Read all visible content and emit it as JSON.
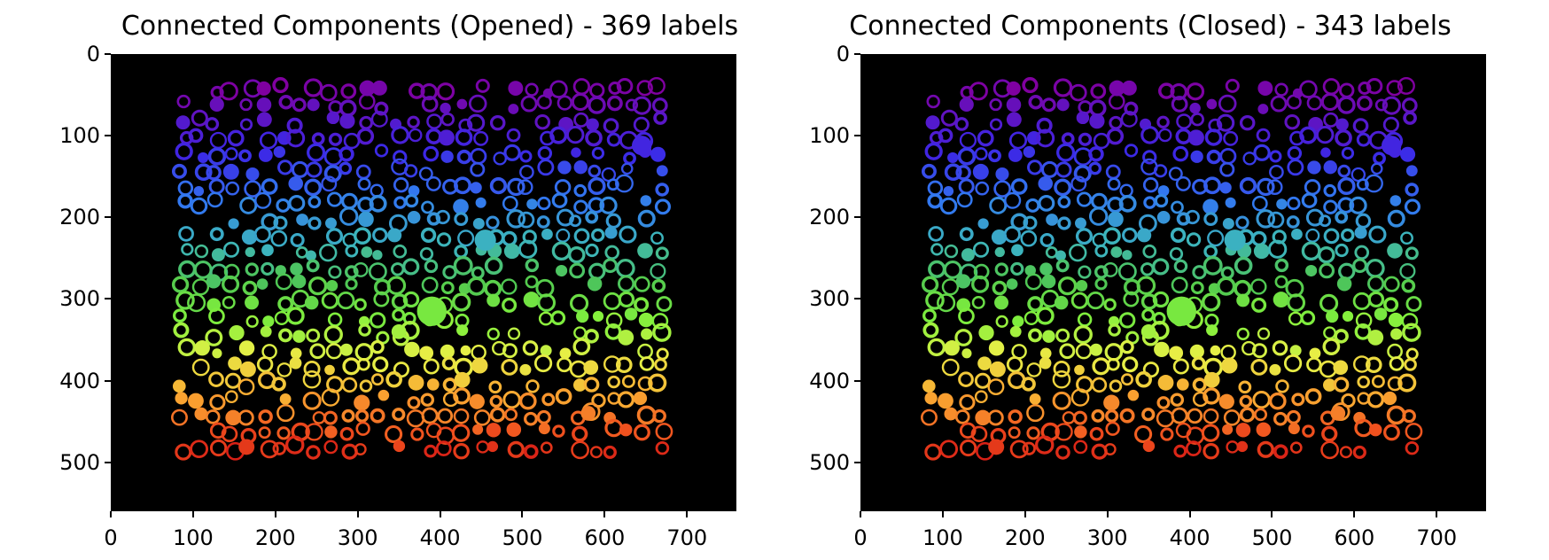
{
  "figure": {
    "panels": [
      {
        "title": "Connected Components (Opened) - 369 labels",
        "x_ticks": [
          "0",
          "100",
          "200",
          "300",
          "400",
          "500",
          "600",
          "700"
        ],
        "y_ticks": [
          "0",
          "100",
          "200",
          "300",
          "400",
          "500"
        ]
      },
      {
        "title": "Connected Components (Closed) - 343 labels",
        "x_ticks": [
          "0",
          "100",
          "200",
          "300",
          "400",
          "500",
          "600",
          "700"
        ],
        "y_ticks": [
          "0",
          "100",
          "200",
          "300",
          "400",
          "500"
        ]
      }
    ],
    "colormap": "rainbow",
    "background_color": "#000000",
    "x_range": [
      0,
      760
    ],
    "y_range": [
      0,
      560
    ],
    "image_width": 760,
    "image_height": 560
  }
}
